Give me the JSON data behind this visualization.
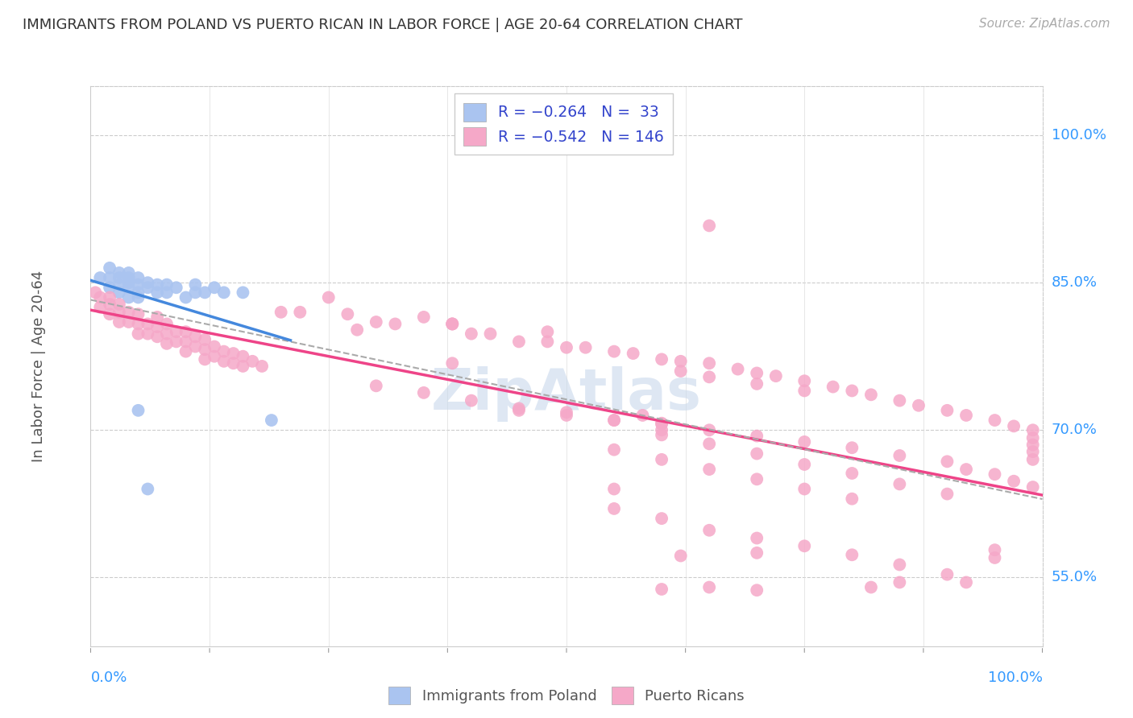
{
  "title": "IMMIGRANTS FROM POLAND VS PUERTO RICAN IN LABOR FORCE | AGE 20-64 CORRELATION CHART",
  "source": "Source: ZipAtlas.com",
  "ylabel": "In Labor Force | Age 20-64",
  "poland_color": "#aac4f0",
  "pr_color": "#f5a8c8",
  "poland_line_color": "#4488dd",
  "pr_line_color": "#ee4488",
  "trend_dashed_color": "#aaaaaa",
  "watermark_color": "#c8d8ec",
  "xlim": [
    0.0,
    1.0
  ],
  "ylim": [
    0.48,
    1.05
  ],
  "ytick_vals": [
    0.55,
    0.7,
    0.85,
    1.0
  ],
  "ytick_labels": [
    "55.0%",
    "70.0%",
    "85.0%",
    "100.0%"
  ],
  "poland_x": [
    0.01,
    0.02,
    0.02,
    0.02,
    0.03,
    0.03,
    0.03,
    0.03,
    0.04,
    0.04,
    0.04,
    0.04,
    0.04,
    0.05,
    0.05,
    0.05,
    0.05,
    0.06,
    0.06,
    0.07,
    0.07,
    0.08,
    0.08,
    0.09,
    0.1,
    0.11,
    0.11,
    0.12,
    0.13,
    0.14,
    0.16,
    0.06,
    0.19,
    0.05
  ],
  "poland_y": [
    0.855,
    0.865,
    0.855,
    0.845,
    0.86,
    0.855,
    0.848,
    0.84,
    0.86,
    0.855,
    0.85,
    0.845,
    0.835,
    0.855,
    0.848,
    0.84,
    0.835,
    0.85,
    0.845,
    0.848,
    0.84,
    0.848,
    0.84,
    0.845,
    0.835,
    0.848,
    0.84,
    0.84,
    0.845,
    0.84,
    0.84,
    0.64,
    0.71,
    0.72
  ],
  "pr_x": [
    0.005,
    0.01,
    0.01,
    0.02,
    0.02,
    0.02,
    0.03,
    0.03,
    0.03,
    0.04,
    0.04,
    0.05,
    0.05,
    0.05,
    0.06,
    0.06,
    0.07,
    0.07,
    0.07,
    0.08,
    0.08,
    0.08,
    0.09,
    0.09,
    0.1,
    0.1,
    0.1,
    0.11,
    0.11,
    0.12,
    0.12,
    0.12,
    0.13,
    0.13,
    0.14,
    0.14,
    0.15,
    0.15,
    0.16,
    0.16,
    0.17,
    0.18,
    0.2,
    0.22,
    0.25,
    0.27,
    0.3,
    0.32,
    0.35,
    0.38,
    0.4,
    0.42,
    0.45,
    0.48,
    0.5,
    0.52,
    0.55,
    0.57,
    0.6,
    0.62,
    0.65,
    0.68,
    0.7,
    0.72,
    0.75,
    0.78,
    0.8,
    0.82,
    0.85,
    0.87,
    0.9,
    0.92,
    0.95,
    0.97,
    0.99,
    0.99,
    0.99,
    0.99,
    0.99,
    0.45,
    0.5,
    0.55,
    0.6,
    0.65,
    0.7,
    0.75,
    0.8,
    0.85,
    0.9,
    0.92,
    0.95,
    0.97,
    0.99,
    0.3,
    0.35,
    0.4,
    0.45,
    0.5,
    0.55,
    0.6,
    0.55,
    0.6,
    0.65,
    0.7,
    0.75,
    0.8,
    0.38,
    0.55,
    0.38,
    0.6,
    0.65,
    0.7,
    0.75,
    0.8,
    0.85,
    0.9,
    0.62,
    0.65,
    0.7,
    0.75,
    0.58,
    0.6,
    0.28,
    0.38,
    0.48,
    0.65,
    0.6,
    0.65,
    0.7,
    0.62,
    0.7,
    0.82,
    0.85,
    0.55,
    0.6,
    0.65,
    0.7,
    0.75,
    0.8,
    0.85,
    0.9,
    0.92,
    0.95,
    0.95
  ],
  "pr_y": [
    0.84,
    0.835,
    0.825,
    0.835,
    0.828,
    0.818,
    0.828,
    0.82,
    0.81,
    0.82,
    0.81,
    0.818,
    0.808,
    0.798,
    0.808,
    0.798,
    0.815,
    0.805,
    0.795,
    0.808,
    0.798,
    0.788,
    0.8,
    0.79,
    0.8,
    0.79,
    0.78,
    0.795,
    0.785,
    0.792,
    0.782,
    0.772,
    0.785,
    0.775,
    0.78,
    0.77,
    0.778,
    0.768,
    0.775,
    0.765,
    0.77,
    0.765,
    0.82,
    0.82,
    0.835,
    0.818,
    0.81,
    0.808,
    0.815,
    0.808,
    0.798,
    0.798,
    0.79,
    0.79,
    0.784,
    0.784,
    0.78,
    0.778,
    0.772,
    0.77,
    0.768,
    0.762,
    0.758,
    0.755,
    0.75,
    0.744,
    0.74,
    0.736,
    0.73,
    0.725,
    0.72,
    0.715,
    0.71,
    0.704,
    0.7,
    0.692,
    0.685,
    0.678,
    0.67,
    0.72,
    0.715,
    0.71,
    0.706,
    0.7,
    0.694,
    0.688,
    0.682,
    0.674,
    0.668,
    0.66,
    0.655,
    0.648,
    0.642,
    0.745,
    0.738,
    0.73,
    0.722,
    0.718,
    0.71,
    0.7,
    0.68,
    0.67,
    0.66,
    0.65,
    0.64,
    0.63,
    0.808,
    0.64,
    0.768,
    0.695,
    0.686,
    0.676,
    0.665,
    0.656,
    0.645,
    0.635,
    0.76,
    0.754,
    0.747,
    0.74,
    0.715,
    0.707,
    0.802,
    0.808,
    0.8,
    0.908,
    0.538,
    0.54,
    0.537,
    0.572,
    0.575,
    0.54,
    0.545,
    0.62,
    0.61,
    0.598,
    0.59,
    0.582,
    0.573,
    0.563,
    0.553,
    0.545,
    0.578,
    0.57
  ]
}
